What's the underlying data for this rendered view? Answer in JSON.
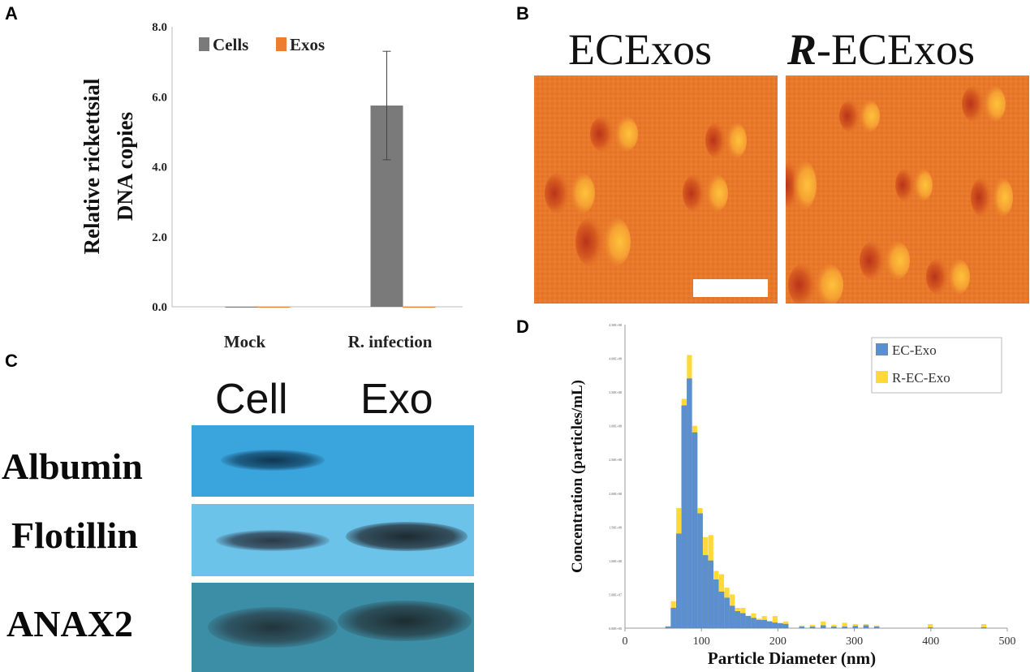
{
  "panels": {
    "a": "A",
    "b": "B",
    "c": "C",
    "d": "D"
  },
  "panel_b": {
    "left_title": "ECExos",
    "right_title_italic": "R",
    "right_title_rest": "-ECExos"
  },
  "panel_c": {
    "columns": [
      "Cell",
      "Exo"
    ],
    "rows": [
      "Albumin",
      "Flotillin",
      "ANAX2"
    ]
  },
  "colors": {
    "cells": "#7a7a7a",
    "exos": "#ed7d31",
    "ec_exo": "#5b8fd0",
    "r_ec_exo": "#ffd93a",
    "afm_base": "#e8782a",
    "blot_albumin": "#3aa4dd",
    "blot_flotillin": "#6cc3ea",
    "blot_anax2": "#3c8ea6"
  },
  "chart_data": [
    {
      "type": "bar",
      "panel": "A",
      "categories": [
        "Mock",
        "R. infection"
      ],
      "series": [
        {
          "name": "Cells",
          "values": [
            0.0,
            5.75
          ],
          "error": [
            0.0,
            1.55
          ]
        },
        {
          "name": "Exos",
          "values": [
            0.0,
            0.0
          ]
        }
      ],
      "ylabel_line1": "Relative rickettsial",
      "ylabel_line2": "DNA copies",
      "ylim": [
        0,
        8
      ],
      "yticks": [
        "0.0",
        "2.0",
        "4.0",
        "6.0",
        "8.0"
      ],
      "legend": "top-left"
    },
    {
      "type": "bar",
      "panel": "D",
      "xlabel": "Particle Diameter (nm)",
      "ylabel": "Concentration (particles/mL)",
      "xlim": [
        0,
        500
      ],
      "xticks": [
        "0",
        "100",
        "200",
        "300",
        "400",
        "500"
      ],
      "ylim": [
        0,
        450000000.0
      ],
      "yticks": [
        "0.00E+00",
        "5.00E+07",
        "1.00E+08",
        "1.50E+08",
        "2.00E+08",
        "2.50E+08",
        "3.00E+08",
        "3.50E+08",
        "4.00E+08",
        "4.50E+08"
      ],
      "bin_width": 7,
      "bins_start": [
        53,
        60,
        67,
        74,
        81,
        88,
        95,
        102,
        109,
        116,
        123,
        130,
        137,
        144,
        151,
        158,
        165,
        172,
        179,
        186,
        193,
        200,
        207,
        228,
        242,
        256,
        270,
        284,
        298,
        312,
        326,
        396,
        466
      ],
      "series": [
        {
          "name": "EC-Exo",
          "values": [
            2,
            30,
            140,
            330,
            370,
            290,
            170,
            108,
            100,
            72,
            54,
            45,
            33,
            25,
            22,
            18,
            15,
            12,
            12,
            10,
            8,
            7,
            6,
            2,
            2,
            4,
            2,
            2,
            3,
            4,
            2,
            1,
            1
          ]
        },
        {
          "name": "R-EC-Exo",
          "values": [
            3,
            40,
            178,
            340,
            405,
            300,
            178,
            135,
            138,
            85,
            80,
            60,
            50,
            30,
            30,
            18,
            22,
            14,
            18,
            10,
            18,
            8,
            10,
            4,
            5,
            10,
            5,
            8,
            6,
            6,
            4,
            6,
            6
          ]
        }
      ],
      "legend": "top-right"
    }
  ]
}
